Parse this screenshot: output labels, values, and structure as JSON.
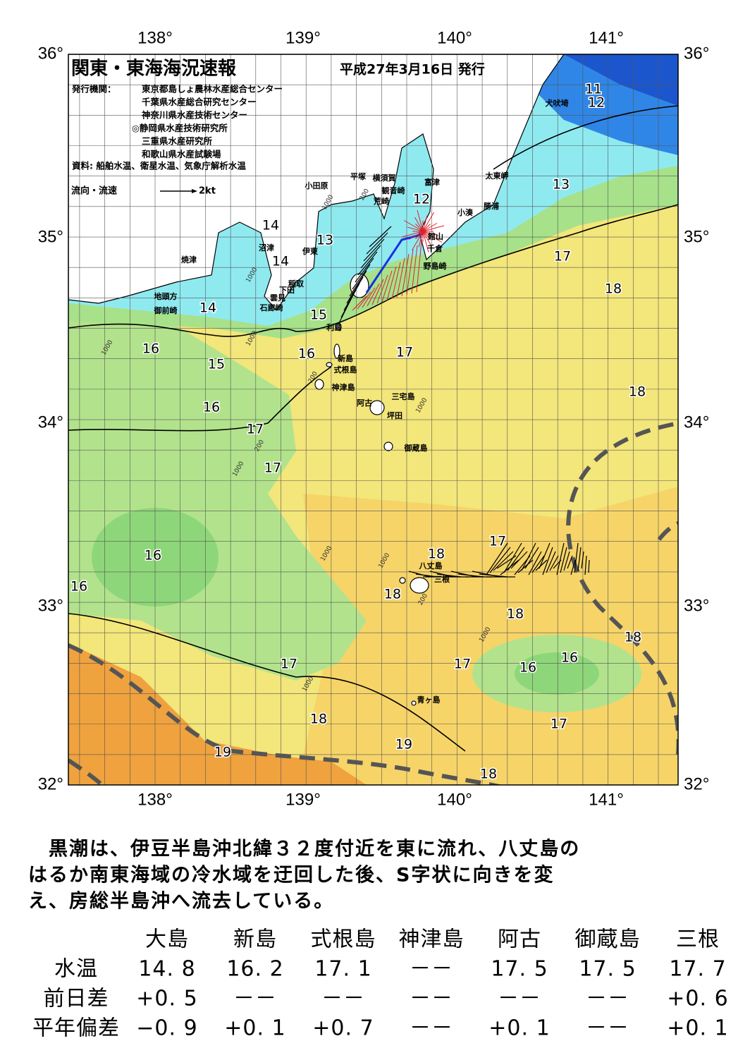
{
  "header": {
    "title": "関東・東海海況速報",
    "date": "平成27年3月16日 発行",
    "publisher_label": "発行機関：",
    "publishers": [
      "東京都島しょ農林水産総合センター",
      "千葉県水産総合研究センター",
      "神奈川県水産技術センター",
      "◎静岡県水産技術研究所",
      "三重県水産研究所",
      "和歌山県水産試験場"
    ],
    "source": "資料: 船舶水温、衛星水温、気象庁解析水温",
    "legend_label": "流向・流速",
    "legend_scale": "2kt"
  },
  "map": {
    "lon_labels": [
      "138°",
      "139°",
      "140°",
      "141°"
    ],
    "lat_labels": [
      "36°",
      "35°",
      "34°",
      "33°",
      "32°"
    ],
    "places": [
      "犬吠埼",
      "太東岬",
      "勝浦",
      "小湊",
      "富津",
      "横須賀",
      "観音崎",
      "平塚",
      "小田原",
      "荒崎",
      "館山",
      "千倉",
      "野島崎",
      "沼津",
      "伊東",
      "焼津",
      "稲取",
      "下田",
      "雲見",
      "石廊崎",
      "地頭方",
      "御前崎",
      "利島",
      "新島",
      "式根島",
      "神津島",
      "三宅島",
      "阿古",
      "坪田",
      "御蔵島",
      "八丈島",
      "三根",
      "青ヶ島"
    ],
    "isotherm_labels": [
      "11",
      "12",
      "12",
      "13",
      "14",
      "14",
      "13",
      "17",
      "18",
      "14",
      "15",
      "16",
      "16",
      "17",
      "15",
      "18",
      "16",
      "17",
      "17",
      "17",
      "18",
      "16",
      "16",
      "18",
      "18",
      "18",
      "17",
      "17",
      "16",
      "16",
      "18",
      "19",
      "17",
      "19",
      "18"
    ],
    "depth_labels": [
      "1000",
      "200",
      "1000",
      "1000",
      "200",
      "1000",
      "1000",
      "200",
      "1000",
      "1000",
      "1000",
      "200",
      "1000",
      "1000"
    ]
  },
  "text": {
    "lines": [
      "　黒潮は、伊豆半島沖北緯３２度付近を東に流れ、八丈島の",
      "はるか南東海域の冷水域を迂回した後、S字状に向きを変",
      "え、房総半島沖へ流去している。"
    ]
  },
  "table": {
    "columns": [
      "大島",
      "新島",
      "式根島",
      "神津島",
      "阿古",
      "御蔵島",
      "三根"
    ],
    "rows": [
      {
        "label": "水温",
        "cells": [
          "14. 8",
          "16. 2",
          "17. 1",
          "－－",
          "17. 5",
          "17. 5",
          "17. 7"
        ]
      },
      {
        "label": "前日差",
        "cells": [
          "+0. 5",
          "－－",
          "－－",
          "－－",
          "－－",
          "－－",
          "+0. 6"
        ]
      },
      {
        "label": "平年偏差",
        "cells": [
          "−0. 9",
          "+0. 1",
          "+0. 7",
          "－－",
          "+0. 1",
          "－－",
          "+0. 1"
        ]
      }
    ]
  }
}
